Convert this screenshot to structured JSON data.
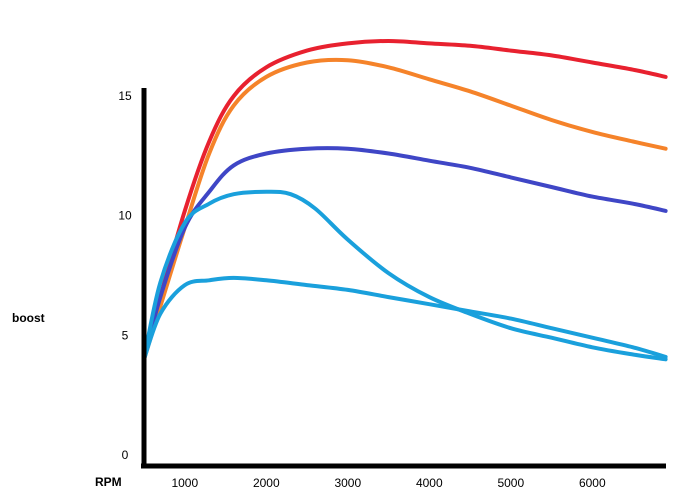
{
  "chart_data": {
    "type": "line",
    "title": "",
    "xlabel": "RPM",
    "ylabel": "boost",
    "xlim": [
      500,
      6900
    ],
    "ylim": [
      0,
      16
    ],
    "x_ticks": [
      1000,
      2000,
      3000,
      4000,
      5000,
      6000
    ],
    "x_tick_labels": [
      "1000",
      "2000",
      "3000",
      "4000",
      "5000",
      "6000"
    ],
    "y_ticks": [
      0,
      5,
      10,
      15
    ],
    "y_tick_labels": [
      "0",
      "5",
      "10",
      "15"
    ],
    "grid": false,
    "legend": "none",
    "series": [
      {
        "color": "#e8212f",
        "x": [
          500,
          700,
          1000,
          1300,
          1600,
          2000,
          2500,
          3000,
          3500,
          4000,
          4500,
          5000,
          5500,
          6000,
          6500,
          6900
        ],
        "y": [
          4.0,
          6.6,
          10.2,
          13.1,
          15.0,
          16.2,
          16.9,
          17.2,
          17.3,
          17.2,
          17.1,
          16.9,
          16.7,
          16.4,
          16.1,
          15.8
        ]
      },
      {
        "color": "#f5832a",
        "x": [
          500,
          700,
          1000,
          1300,
          1600,
          2000,
          2500,
          3000,
          3500,
          4000,
          4500,
          5000,
          5500,
          6000,
          6500,
          6900
        ],
        "y": [
          4.0,
          6.2,
          9.5,
          12.6,
          14.6,
          15.8,
          16.4,
          16.5,
          16.2,
          15.7,
          15.2,
          14.6,
          14.0,
          13.5,
          13.1,
          12.8
        ]
      },
      {
        "color": "#3f46c6",
        "x": [
          500,
          700,
          1000,
          1300,
          1600,
          2000,
          2500,
          3000,
          3500,
          4000,
          4500,
          5000,
          5500,
          6000,
          6500,
          6900
        ],
        "y": [
          4.0,
          6.6,
          9.5,
          11.0,
          12.1,
          12.6,
          12.8,
          12.8,
          12.6,
          12.3,
          12.0,
          11.6,
          11.2,
          10.8,
          10.5,
          10.2
        ]
      },
      {
        "color": "#1aa0dc",
        "x": [
          500,
          700,
          1000,
          1300,
          1600,
          2000,
          2300,
          2600,
          3000,
          3500,
          4000,
          4500,
          5000,
          5500,
          6000,
          6500,
          6900
        ],
        "y": [
          4.0,
          7.2,
          9.7,
          10.5,
          10.9,
          11.0,
          10.9,
          10.3,
          9.0,
          7.6,
          6.6,
          5.9,
          5.3,
          4.9,
          4.5,
          4.2,
          4.0
        ]
      },
      {
        "color": "#1aa0dc",
        "x": [
          500,
          700,
          1000,
          1300,
          1600,
          2000,
          2500,
          3000,
          3500,
          4000,
          4500,
          5000,
          5500,
          6000,
          6500,
          6900
        ],
        "y": [
          4.0,
          5.9,
          7.1,
          7.3,
          7.4,
          7.3,
          7.1,
          6.9,
          6.6,
          6.3,
          6.0,
          5.7,
          5.3,
          4.9,
          4.5,
          4.1
        ]
      }
    ]
  }
}
